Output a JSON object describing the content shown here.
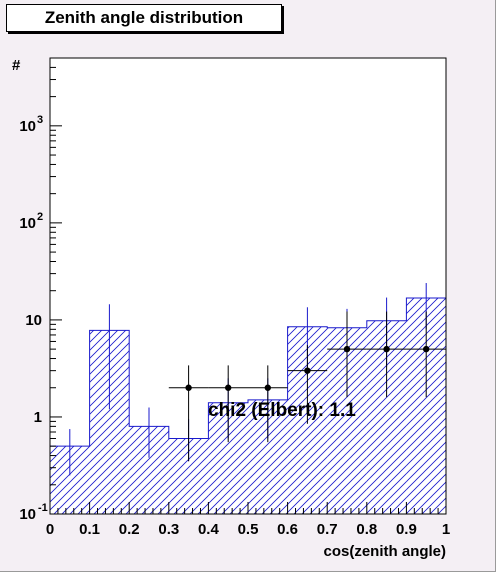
{
  "title": "Zenith angle distribution",
  "chart_data": {
    "type": "histogram",
    "title": "Zenith angle distribution",
    "xlabel": "cos(zenith angle)",
    "ylabel": "#",
    "xlim": [
      0,
      1
    ],
    "ylim": [
      0.1,
      5000
    ],
    "yscale": "log",
    "x_ticks": [
      "0",
      "0.1",
      "0.2",
      "0.3",
      "0.4",
      "0.5",
      "0.6",
      "0.7",
      "0.8",
      "0.9",
      "1"
    ],
    "y_ticks": [
      {
        "base": "10",
        "exp": "-1",
        "value": 0.1
      },
      {
        "base": "1",
        "exp": "",
        "value": 1
      },
      {
        "base": "10",
        "exp": "",
        "value": 10
      },
      {
        "base": "10",
        "exp": "2",
        "value": 100
      },
      {
        "base": "10",
        "exp": "3",
        "value": 1000
      }
    ],
    "expected": {
      "style": "hatched histogram",
      "color": "#1a1acc",
      "bin_edges": [
        0,
        0.1,
        0.2,
        0.3,
        0.4,
        0.5,
        0.6,
        0.7,
        0.8,
        0.9,
        1.0
      ],
      "values": [
        0.5,
        7.8,
        0.8,
        0.6,
        1.4,
        1.5,
        8.5,
        8.3,
        9.8,
        16.8
      ],
      "error_low": [
        0.25,
        1.2,
        0.38,
        0.35,
        0.6,
        0.6,
        2.7,
        2.8,
        3.3,
        8.0
      ],
      "error_high": [
        0.75,
        14.5,
        1.25,
        0.95,
        2.5,
        2.5,
        13.5,
        13.0,
        17.0,
        24.0
      ]
    },
    "observed": {
      "style": "points with error bars",
      "color": "#000000",
      "x": [
        0.35,
        0.45,
        0.55,
        0.65,
        0.75,
        0.85,
        0.95
      ],
      "y": [
        2,
        2,
        2,
        3,
        5,
        5,
        5
      ],
      "x_err": 0.05,
      "y_err_low": [
        0.35,
        0.55,
        0.55,
        0.85,
        1.6,
        1.6,
        1.6
      ],
      "y_err_high": [
        3.4,
        3.4,
        3.4,
        5.5,
        12.2,
        12.2,
        12.2
      ]
    },
    "annotation": "chi2 (Elbert): 1.1"
  }
}
